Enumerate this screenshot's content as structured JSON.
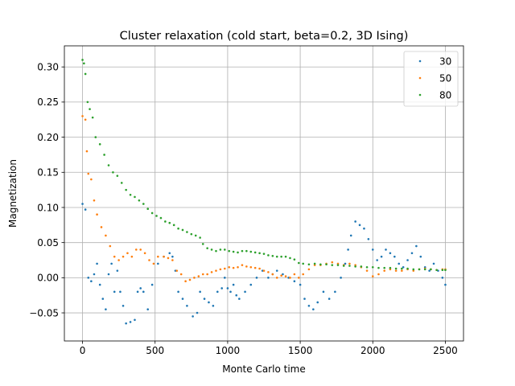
{
  "chart_data": {
    "type": "scatter",
    "title": "Cluster relaxation (cold start, beta=0.2, 3D Ising)",
    "xlabel": "Monte Carlo time",
    "ylabel": "Magnetization",
    "xlim": [
      -125,
      2625
    ],
    "ylim": [
      -0.09,
      0.33
    ],
    "x_ticks": [
      0,
      500,
      1000,
      1500,
      2000,
      2500
    ],
    "x_tick_labels": [
      "0",
      "500",
      "1000",
      "1500",
      "2000",
      "2500"
    ],
    "y_ticks": [
      -0.05,
      0.0,
      0.05,
      0.1,
      0.15,
      0.2,
      0.25,
      0.3
    ],
    "y_tick_labels": [
      "−0.05",
      "0.00",
      "0.05",
      "0.10",
      "0.15",
      "0.20",
      "0.25",
      "0.30"
    ],
    "grid": true,
    "legend_position": "upper right",
    "series": [
      {
        "name": "30",
        "color": "#1f77b4",
        "points": [
          [
            0,
            0.105
          ],
          [
            20,
            0.097
          ],
          [
            40,
            0.0
          ],
          [
            60,
            -0.005
          ],
          [
            80,
            0.005
          ],
          [
            100,
            0.02
          ],
          [
            120,
            -0.01
          ],
          [
            140,
            -0.03
          ],
          [
            160,
            -0.045
          ],
          [
            180,
            0.005
          ],
          [
            200,
            0.02
          ],
          [
            220,
            -0.02
          ],
          [
            240,
            0.01
          ],
          [
            260,
            -0.02
          ],
          [
            280,
            -0.04
          ],
          [
            300,
            -0.065
          ],
          [
            330,
            -0.063
          ],
          [
            360,
            -0.06
          ],
          [
            380,
            -0.02
          ],
          [
            400,
            -0.015
          ],
          [
            420,
            -0.02
          ],
          [
            450,
            -0.045
          ],
          [
            480,
            -0.01
          ],
          [
            520,
            0.02
          ],
          [
            560,
            0.03
          ],
          [
            600,
            0.035
          ],
          [
            620,
            0.03
          ],
          [
            640,
            0.01
          ],
          [
            660,
            -0.02
          ],
          [
            690,
            -0.03
          ],
          [
            720,
            -0.04
          ],
          [
            760,
            -0.055
          ],
          [
            790,
            -0.05
          ],
          [
            810,
            -0.02
          ],
          [
            840,
            -0.03
          ],
          [
            870,
            -0.035
          ],
          [
            900,
            -0.04
          ],
          [
            930,
            -0.02
          ],
          [
            960,
            -0.015
          ],
          [
            980,
            0.0
          ],
          [
            1000,
            -0.015
          ],
          [
            1020,
            -0.02
          ],
          [
            1040,
            -0.01
          ],
          [
            1060,
            -0.025
          ],
          [
            1080,
            -0.03
          ],
          [
            1120,
            -0.02
          ],
          [
            1160,
            -0.01
          ],
          [
            1200,
            0.0
          ],
          [
            1240,
            0.01
          ],
          [
            1280,
            0.0
          ],
          [
            1310,
            0.005
          ],
          [
            1340,
            0.01
          ],
          [
            1380,
            0.005
          ],
          [
            1420,
            0.0
          ],
          [
            1460,
            -0.005
          ],
          [
            1500,
            -0.01
          ],
          [
            1530,
            -0.03
          ],
          [
            1560,
            -0.04
          ],
          [
            1590,
            -0.045
          ],
          [
            1620,
            -0.035
          ],
          [
            1660,
            -0.02
          ],
          [
            1700,
            -0.03
          ],
          [
            1740,
            -0.02
          ],
          [
            1780,
            0.0
          ],
          [
            1810,
            0.02
          ],
          [
            1830,
            0.04
          ],
          [
            1850,
            0.06
          ],
          [
            1880,
            0.08
          ],
          [
            1910,
            0.075
          ],
          [
            1940,
            0.07
          ],
          [
            1970,
            0.055
          ],
          [
            2000,
            0.04
          ],
          [
            2030,
            0.025
          ],
          [
            2060,
            0.03
          ],
          [
            2090,
            0.04
          ],
          [
            2120,
            0.035
          ],
          [
            2150,
            0.03
          ],
          [
            2180,
            0.02
          ],
          [
            2210,
            0.015
          ],
          [
            2240,
            0.025
          ],
          [
            2270,
            0.035
          ],
          [
            2300,
            0.045
          ],
          [
            2330,
            0.03
          ],
          [
            2360,
            0.015
          ],
          [
            2390,
            0.01
          ],
          [
            2420,
            0.02
          ],
          [
            2450,
            0.01
          ],
          [
            2480,
            0.0
          ],
          [
            2500,
            -0.01
          ]
        ]
      },
      {
        "name": "50",
        "color": "#ff7f0e",
        "points": [
          [
            0,
            0.23
          ],
          [
            20,
            0.225
          ],
          [
            30,
            0.18
          ],
          [
            40,
            0.148
          ],
          [
            60,
            0.14
          ],
          [
            80,
            0.11
          ],
          [
            100,
            0.09
          ],
          [
            130,
            0.072
          ],
          [
            160,
            0.06
          ],
          [
            190,
            0.045
          ],
          [
            220,
            0.03
          ],
          [
            250,
            0.025
          ],
          [
            280,
            0.03
          ],
          [
            310,
            0.035
          ],
          [
            340,
            0.03
          ],
          [
            370,
            0.04
          ],
          [
            400,
            0.04
          ],
          [
            430,
            0.035
          ],
          [
            460,
            0.025
          ],
          [
            490,
            0.02
          ],
          [
            520,
            0.03
          ],
          [
            560,
            0.03
          ],
          [
            590,
            0.028
          ],
          [
            620,
            0.025
          ],
          [
            650,
            0.01
          ],
          [
            680,
            0.005
          ],
          [
            710,
            -0.005
          ],
          [
            740,
            -0.003
          ],
          [
            770,
            0.0
          ],
          [
            800,
            0.002
          ],
          [
            830,
            0.005
          ],
          [
            860,
            0.005
          ],
          [
            890,
            0.008
          ],
          [
            920,
            0.01
          ],
          [
            950,
            0.012
          ],
          [
            980,
            0.013
          ],
          [
            1010,
            0.015
          ],
          [
            1040,
            0.014
          ],
          [
            1070,
            0.015
          ],
          [
            1100,
            0.018
          ],
          [
            1130,
            0.016
          ],
          [
            1160,
            0.015
          ],
          [
            1190,
            0.014
          ],
          [
            1220,
            0.013
          ],
          [
            1250,
            0.01
          ],
          [
            1280,
            0.008
          ],
          [
            1310,
            0.005
          ],
          [
            1340,
            0.0
          ],
          [
            1370,
            0.003
          ],
          [
            1400,
            0.002
          ],
          [
            1430,
            0.0
          ],
          [
            1460,
            0.005
          ],
          [
            1490,
            0.0
          ],
          [
            1520,
            0.005
          ],
          [
            1560,
            0.012
          ],
          [
            1600,
            0.018
          ],
          [
            1640,
            0.018
          ],
          [
            1680,
            0.02
          ],
          [
            1720,
            0.022
          ],
          [
            1760,
            0.02
          ],
          [
            1800,
            0.018
          ],
          [
            1840,
            0.02
          ],
          [
            1880,
            0.018
          ],
          [
            1920,
            0.015
          ],
          [
            1960,
            0.01
          ],
          [
            2000,
            0.002
          ],
          [
            2040,
            0.005
          ],
          [
            2080,
            0.01
          ],
          [
            2120,
            0.012
          ],
          [
            2160,
            0.01
          ],
          [
            2200,
            0.01
          ],
          [
            2240,
            0.012
          ],
          [
            2280,
            0.01
          ],
          [
            2320,
            0.012
          ],
          [
            2360,
            0.013
          ],
          [
            2400,
            0.012
          ],
          [
            2440,
            0.011
          ],
          [
            2480,
            0.012
          ],
          [
            2500,
            0.012
          ]
        ]
      },
      {
        "name": "80",
        "color": "#2ca02c",
        "points": [
          [
            0,
            0.31
          ],
          [
            10,
            0.305
          ],
          [
            20,
            0.29
          ],
          [
            35,
            0.25
          ],
          [
            50,
            0.24
          ],
          [
            70,
            0.228
          ],
          [
            90,
            0.2
          ],
          [
            120,
            0.19
          ],
          [
            150,
            0.175
          ],
          [
            180,
            0.16
          ],
          [
            210,
            0.15
          ],
          [
            240,
            0.145
          ],
          [
            270,
            0.135
          ],
          [
            300,
            0.125
          ],
          [
            330,
            0.118
          ],
          [
            360,
            0.115
          ],
          [
            390,
            0.11
          ],
          [
            420,
            0.105
          ],
          [
            450,
            0.098
          ],
          [
            480,
            0.092
          ],
          [
            510,
            0.088
          ],
          [
            540,
            0.085
          ],
          [
            570,
            0.08
          ],
          [
            600,
            0.078
          ],
          [
            630,
            0.075
          ],
          [
            660,
            0.07
          ],
          [
            690,
            0.068
          ],
          [
            720,
            0.065
          ],
          [
            750,
            0.062
          ],
          [
            780,
            0.06
          ],
          [
            810,
            0.057
          ],
          [
            830,
            0.048
          ],
          [
            860,
            0.042
          ],
          [
            890,
            0.04
          ],
          [
            920,
            0.038
          ],
          [
            950,
            0.04
          ],
          [
            980,
            0.04
          ],
          [
            1010,
            0.038
          ],
          [
            1040,
            0.037
          ],
          [
            1070,
            0.036
          ],
          [
            1100,
            0.038
          ],
          [
            1130,
            0.038
          ],
          [
            1160,
            0.037
          ],
          [
            1190,
            0.036
          ],
          [
            1220,
            0.035
          ],
          [
            1250,
            0.034
          ],
          [
            1280,
            0.032
          ],
          [
            1310,
            0.031
          ],
          [
            1340,
            0.03
          ],
          [
            1370,
            0.03
          ],
          [
            1400,
            0.03
          ],
          [
            1430,
            0.028
          ],
          [
            1460,
            0.026
          ],
          [
            1490,
            0.021
          ],
          [
            1520,
            0.02
          ],
          [
            1560,
            0.019
          ],
          [
            1600,
            0.02
          ],
          [
            1640,
            0.019
          ],
          [
            1680,
            0.019
          ],
          [
            1720,
            0.018
          ],
          [
            1760,
            0.018
          ],
          [
            1800,
            0.017
          ],
          [
            1840,
            0.017
          ],
          [
            1880,
            0.016
          ],
          [
            1920,
            0.016
          ],
          [
            1960,
            0.015
          ],
          [
            2000,
            0.015
          ],
          [
            2040,
            0.014
          ],
          [
            2080,
            0.014
          ],
          [
            2120,
            0.014
          ],
          [
            2160,
            0.013
          ],
          [
            2200,
            0.013
          ],
          [
            2240,
            0.013
          ],
          [
            2280,
            0.012
          ],
          [
            2320,
            0.012
          ],
          [
            2360,
            0.012
          ],
          [
            2400,
            0.012
          ],
          [
            2440,
            0.011
          ],
          [
            2480,
            0.011
          ],
          [
            2500,
            0.011
          ]
        ]
      }
    ]
  }
}
